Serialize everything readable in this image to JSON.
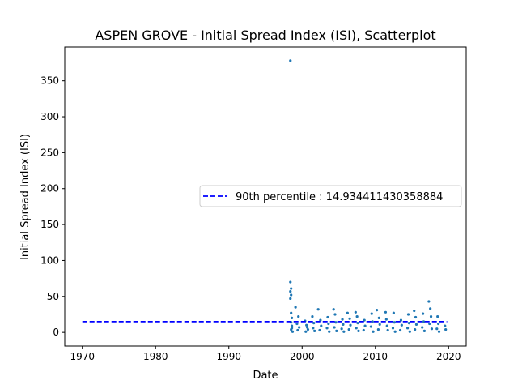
{
  "chart_data": {
    "type": "scatter",
    "title": "ASPEN GROVE - Initial Spread Index (ISI), Scatterplot",
    "xlabel": "Date",
    "ylabel": "Initial Spread Index (ISI)",
    "xlim": [
      1967.6,
      2022.4
    ],
    "ylim": [
      -19,
      397
    ],
    "x_ticks": [
      1970,
      1980,
      1990,
      2000,
      2010,
      2020
    ],
    "y_ticks": [
      0,
      50,
      100,
      150,
      200,
      250,
      300,
      350
    ],
    "legend_position": "center-right",
    "colors": {
      "points": "#1f77b4",
      "reference_line": "#0000ff"
    },
    "reference_line": {
      "label": "90th percentile : 14.934411430358884",
      "y": 14.934411430358884,
      "x_range": [
        1970,
        2019.8
      ]
    },
    "series": [
      {
        "points": [
          [
            1998.4,
            378
          ],
          [
            1998.4,
            70
          ],
          [
            1998.5,
            61
          ],
          [
            1998.4,
            57
          ],
          [
            1998.5,
            52
          ],
          [
            1998.4,
            47
          ],
          [
            1998.5,
            27
          ],
          [
            1998.6,
            20
          ],
          [
            1998.5,
            14
          ],
          [
            1998.6,
            9
          ],
          [
            1998.5,
            4
          ],
          [
            1998.7,
            1
          ],
          [
            1998.6,
            6
          ],
          [
            1999.1,
            35
          ],
          [
            1999.5,
            22
          ],
          [
            1999.3,
            12
          ],
          [
            1999.6,
            7
          ],
          [
            1999.4,
            3
          ],
          [
            2000.4,
            16
          ],
          [
            2000.6,
            10
          ],
          [
            2000.8,
            4
          ],
          [
            2000.5,
            1
          ],
          [
            2000.7,
            7
          ],
          [
            2001.4,
            22
          ],
          [
            2001.6,
            13
          ],
          [
            2001.5,
            6
          ],
          [
            2001.7,
            2
          ],
          [
            2002.2,
            32
          ],
          [
            2002.5,
            17
          ],
          [
            2002.6,
            9
          ],
          [
            2002.4,
            3
          ],
          [
            2003.5,
            21
          ],
          [
            2003.6,
            12
          ],
          [
            2003.4,
            6
          ],
          [
            2003.7,
            1
          ],
          [
            2004.3,
            32
          ],
          [
            2004.5,
            25
          ],
          [
            2004.6,
            14
          ],
          [
            2004.4,
            7
          ],
          [
            2004.7,
            2
          ],
          [
            2005.5,
            18
          ],
          [
            2005.6,
            11
          ],
          [
            2005.4,
            5
          ],
          [
            2005.7,
            1
          ],
          [
            2006.2,
            27
          ],
          [
            2006.5,
            19
          ],
          [
            2006.6,
            10
          ],
          [
            2006.4,
            4
          ],
          [
            2007.3,
            28
          ],
          [
            2007.5,
            22
          ],
          [
            2007.6,
            13
          ],
          [
            2007.4,
            6
          ],
          [
            2007.7,
            2
          ],
          [
            2008.5,
            17
          ],
          [
            2008.6,
            9
          ],
          [
            2008.4,
            3
          ],
          [
            2009.5,
            26
          ],
          [
            2009.6,
            15
          ],
          [
            2009.4,
            8
          ],
          [
            2009.7,
            1
          ],
          [
            2010.2,
            31
          ],
          [
            2010.5,
            20
          ],
          [
            2010.6,
            11
          ],
          [
            2010.4,
            4
          ],
          [
            2011.4,
            28
          ],
          [
            2011.5,
            18
          ],
          [
            2011.6,
            9
          ],
          [
            2011.7,
            3
          ],
          [
            2012.5,
            27
          ],
          [
            2012.6,
            14
          ],
          [
            2012.4,
            6
          ],
          [
            2012.7,
            1
          ],
          [
            2013.5,
            17
          ],
          [
            2013.6,
            10
          ],
          [
            2013.4,
            3
          ],
          [
            2014.5,
            25
          ],
          [
            2014.6,
            13
          ],
          [
            2014.4,
            6
          ],
          [
            2014.7,
            1
          ],
          [
            2015.3,
            30
          ],
          [
            2015.5,
            21
          ],
          [
            2015.6,
            11
          ],
          [
            2015.4,
            4
          ],
          [
            2016.5,
            26
          ],
          [
            2016.6,
            15
          ],
          [
            2016.4,
            7
          ],
          [
            2016.7,
            2
          ],
          [
            2017.3,
            43
          ],
          [
            2017.5,
            33
          ],
          [
            2017.6,
            22
          ],
          [
            2017.4,
            12
          ],
          [
            2017.7,
            5
          ],
          [
            2018.5,
            22
          ],
          [
            2018.6,
            12
          ],
          [
            2018.4,
            5
          ],
          [
            2018.7,
            1
          ],
          [
            2019.5,
            9
          ],
          [
            2019.6,
            4
          ]
        ]
      }
    ]
  }
}
